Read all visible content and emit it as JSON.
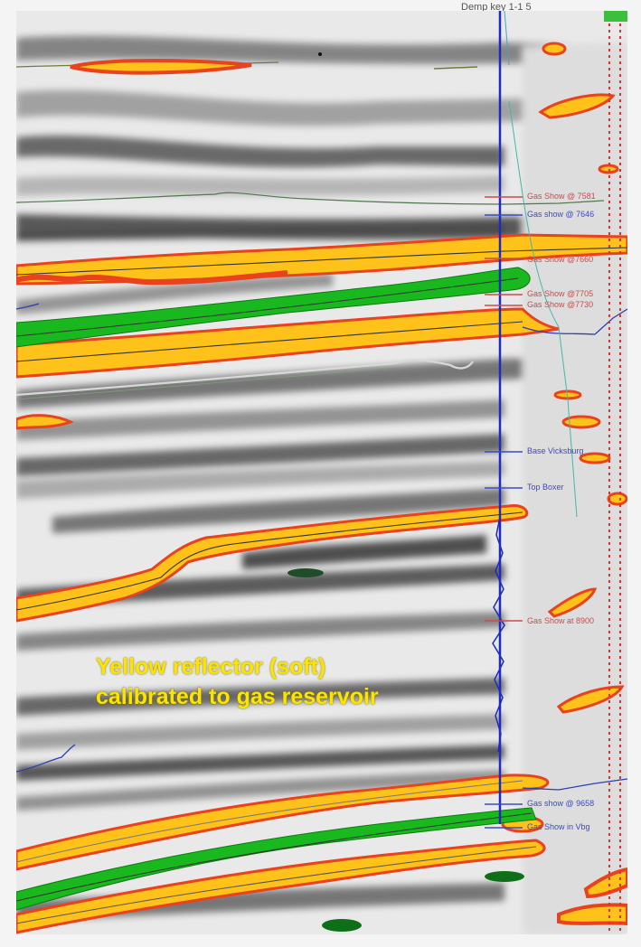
{
  "well": {
    "title": "Demp key 1-1 5",
    "markers": [
      {
        "label": "Gas Show @ 7581",
        "color": "red"
      },
      {
        "label": "Gas show @ 7646",
        "color": "blue"
      },
      {
        "label": "Gas Show @7660",
        "color": "red"
      },
      {
        "label": "Gas Show @7705",
        "color": "red"
      },
      {
        "label": "Gas Show @7730",
        "color": "red"
      },
      {
        "label": "Base Vicksburg",
        "color": "blue"
      },
      {
        "label": "Top Boxer",
        "color": "blue"
      },
      {
        "label": "Gas Show at 8900",
        "color": "red"
      },
      {
        "label": "Gas show @ 9658",
        "color": "blue"
      },
      {
        "label": "Gas Show in Vbg",
        "color": "blue"
      }
    ]
  },
  "annotation": {
    "line1": "Yellow reflector (soft)",
    "line2": "calibrated to gas reservoir"
  },
  "colors": {
    "soft_reflector": "#ffc21a",
    "soft_outline": "#e8421e",
    "hard_reflector": "#19b81f",
    "annotation_text": "#ffe300",
    "well_track": "#1f2bbf",
    "fault_dots": "#e03030"
  }
}
